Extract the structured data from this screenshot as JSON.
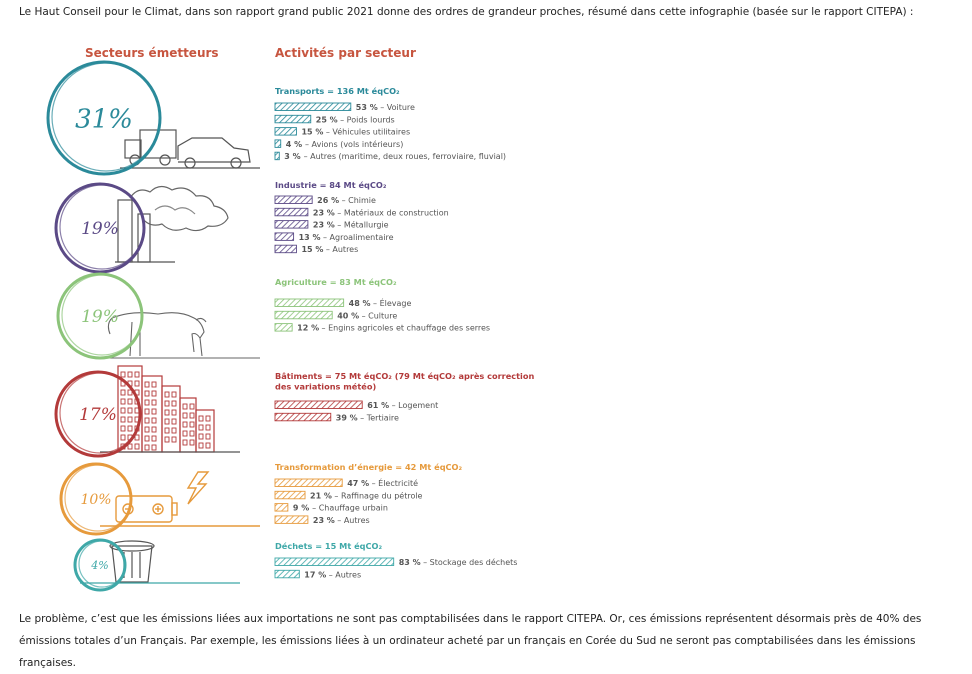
{
  "intro_text": "Le Haut Conseil pour le Climat, dans son rapport grand public 2021 donne des ordres de grandeur proches, résumé dans cette infographie (basée sur le rapport CITEPA) :",
  "outro_text": "Le problème, c’est que les émissions liées aux importations ne sont pas comptabilisées dans le rapport CITEPA. Or, ces émissions représentent désormais près de 40% des émissions totales d’un Français. Par exemple, les émissions liées à un ordinateur acheté par un français en Corée du Sud ne seront pas comptabilisées dans les émissions françaises.",
  "headers": {
    "left": "Secteurs émetteurs",
    "right": "Activités par secteur"
  },
  "chart_data": {
    "type": "bar",
    "unit": "%",
    "sectors": [
      {
        "share_label": "31%",
        "share": 31,
        "color": "#2b8a9a",
        "title": "Transports = 136 Mt éqCO₂",
        "items": [
          {
            "value": 53,
            "value_label": "53 %",
            "label": "Voiture"
          },
          {
            "value": 25,
            "value_label": "25 %",
            "label": "Poids lourds"
          },
          {
            "value": 15,
            "value_label": "15 %",
            "label": "Véhicules utilitaires"
          },
          {
            "value": 4,
            "value_label": "4 %",
            "label": "Avions (vols intérieurs)"
          },
          {
            "value": 3,
            "value_label": "3 %",
            "label": "Autres (maritime, deux roues, ferroviaire, fluvial)"
          }
        ]
      },
      {
        "share_label": "19%",
        "share": 19,
        "color": "#5b4a86",
        "title": "Industrie = 84 Mt éqCO₂",
        "items": [
          {
            "value": 26,
            "value_label": "26 %",
            "label": "Chimie"
          },
          {
            "value": 23,
            "value_label": "23 %",
            "label": "Matériaux de construction"
          },
          {
            "value": 23,
            "value_label": "23 %",
            "label": "Métallurgie"
          },
          {
            "value": 13,
            "value_label": "13 %",
            "label": "Agroalimentaire"
          },
          {
            "value": 15,
            "value_label": "15 %",
            "label": "Autres"
          }
        ]
      },
      {
        "share_label": "19%",
        "share": 19,
        "color": "#8cc47a",
        "title": "Agriculture = 83 Mt éqCO₂",
        "items": [
          {
            "value": 48,
            "value_label": "48 %",
            "label": "Élevage"
          },
          {
            "value": 40,
            "value_label": "40 %",
            "label": "Culture"
          },
          {
            "value": 12,
            "value_label": "12 %",
            "label": "Engins agricoles et chauffage des serres"
          }
        ]
      },
      {
        "share_label": "17%",
        "share": 17,
        "color": "#b33a3a",
        "title": "Bâtiments = 75 Mt éqCO₂ (79 Mt éqCO₂ après correction des variations météo)",
        "items": [
          {
            "value": 61,
            "value_label": "61 %",
            "label": "Logement"
          },
          {
            "value": 39,
            "value_label": "39 %",
            "label": "Tertiaire"
          }
        ]
      },
      {
        "share_label": "10%",
        "share": 10,
        "color": "#e69a3c",
        "title": "Transformation d’énergie = 42 Mt éqCO₂",
        "items": [
          {
            "value": 47,
            "value_label": "47 %",
            "label": "Électricité"
          },
          {
            "value": 21,
            "value_label": "21 %",
            "label": "Raffinage du pétrole"
          },
          {
            "value": 9,
            "value_label": "9 %",
            "label": "Chauffage urbain"
          },
          {
            "value": 23,
            "value_label": "23 %",
            "label": "Autres"
          }
        ]
      },
      {
        "share_label": "4%",
        "share": 4,
        "color": "#3fa8a8",
        "title": "Déchets = 15 Mt éqCO₂",
        "items": [
          {
            "value": 83,
            "value_label": "83 %",
            "label": "Stockage des déchets"
          },
          {
            "value": 17,
            "value_label": "17 %",
            "label": "Autres"
          }
        ]
      }
    ],
    "icons": [
      "truck-car-icon",
      "factory-smoke-icon",
      "cow-icon",
      "buildings-icon",
      "battery-lightning-icon",
      "trash-can-icon"
    ]
  }
}
